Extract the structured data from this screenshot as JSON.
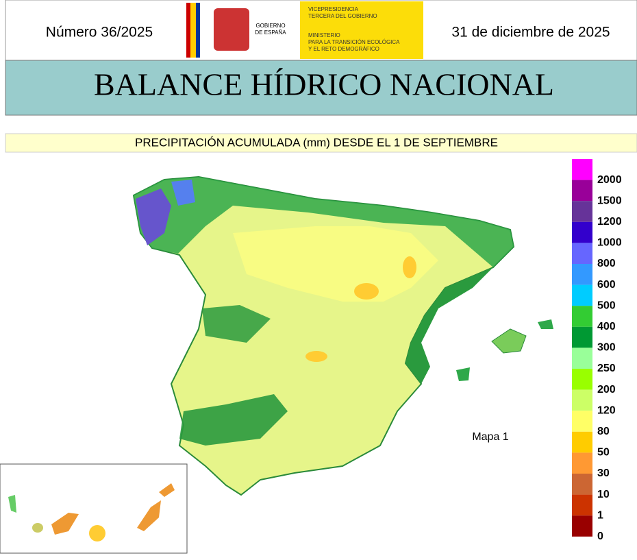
{
  "header": {
    "issue": "Número 36/2025",
    "date": "31 de diciembre de 2025",
    "logo_left": [
      "GOBIERNO",
      "DE ESPAÑA"
    ],
    "logo_right": [
      "VICEPRESIDENCIA",
      "TERCERA DEL GOBIERNO",
      "MINISTERIO",
      "PARA LA TRANSICIÓN ECOLÓGICA",
      "Y EL RETO DEMOGRÁFICO"
    ]
  },
  "title": "BALANCE HÍDRICO NACIONAL",
  "subtitle": "PRECIPITACIÓN ACUMULADA (mm) DESDE EL 1 DE SEPTIEMBRE",
  "map_label": "Mapa 1",
  "legend": [
    {
      "label": 2000,
      "color": "#ff00ff"
    },
    {
      "label": 1500,
      "color": "#990099"
    },
    {
      "label": 1200,
      "color": "#663399"
    },
    {
      "label": 1000,
      "color": "#3300cc"
    },
    {
      "label": 800,
      "color": "#6666ff"
    },
    {
      "label": 600,
      "color": "#3399ff"
    },
    {
      "label": 500,
      "color": "#00ccff"
    },
    {
      "label": 400,
      "color": "#33cc33"
    },
    {
      "label": 300,
      "color": "#009933"
    },
    {
      "label": 250,
      "color": "#99ff99"
    },
    {
      "label": 200,
      "color": "#99ff00"
    },
    {
      "label": 120,
      "color": "#ccff66"
    },
    {
      "label": 80,
      "color": "#ffff66"
    },
    {
      "label": 50,
      "color": "#ffcc00"
    },
    {
      "label": 30,
      "color": "#ff9933"
    },
    {
      "label": 10,
      "color": "#cc6633"
    },
    {
      "label": 1,
      "color": "#cc3300"
    },
    {
      "label": 0,
      "color": "#990000"
    }
  ]
}
